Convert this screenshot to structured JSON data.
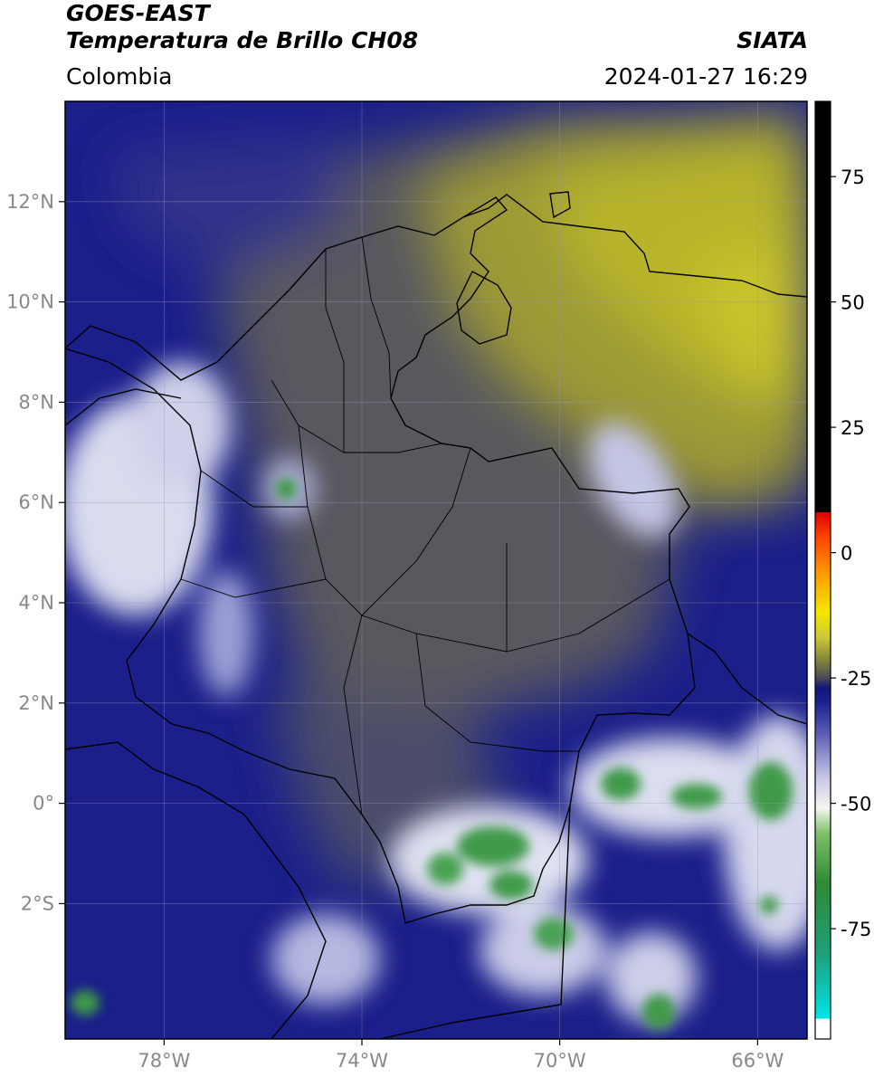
{
  "header": {
    "satellite": "GOES-EAST",
    "product": "Temperatura de Brillo CH08",
    "region": "Colombia",
    "brand": "SIATA",
    "timestamp": "2024-01-27 16:29"
  },
  "map": {
    "extent": {
      "lon_min": -80,
      "lon_max": -65,
      "lat_min": -4.7,
      "lat_max": 14.0
    },
    "lon_ticks": [
      {
        "value": -78,
        "label": "78°W"
      },
      {
        "value": -74,
        "label": "74°W"
      },
      {
        "value": -70,
        "label": "70°W"
      },
      {
        "value": -66,
        "label": "66°W"
      }
    ],
    "lat_ticks": [
      {
        "value": 12,
        "label": "12°N"
      },
      {
        "value": 10,
        "label": "10°N"
      },
      {
        "value": 8,
        "label": "8°N"
      },
      {
        "value": 6,
        "label": "6°N"
      },
      {
        "value": 4,
        "label": "4°N"
      },
      {
        "value": 2,
        "label": "2°N"
      },
      {
        "value": 0,
        "label": "0°"
      },
      {
        "value": -2,
        "label": "2°S"
      }
    ],
    "gridlines": true,
    "colors": {
      "deep_blue": "#1a1f8a",
      "gray": "#5a5a60",
      "yellow": "#b8b42a",
      "white": "#e8e8f4",
      "green": "#3f9a4a",
      "border": "#000000"
    }
  },
  "colorbar": {
    "range": [
      -97,
      90
    ],
    "ticks": [
      {
        "value": 75,
        "label": "75"
      },
      {
        "value": 50,
        "label": "50"
      },
      {
        "value": 25,
        "label": "25"
      },
      {
        "value": 0,
        "label": "0"
      },
      {
        "value": -25,
        "label": "-25"
      },
      {
        "value": -50,
        "label": "-50"
      },
      {
        "value": -75,
        "label": "-75"
      }
    ],
    "stops": [
      {
        "value": -97,
        "color": "#ffffff"
      },
      {
        "value": -93,
        "color": "#ffffff"
      },
      {
        "value": -92.9,
        "color": "#00e5e5"
      },
      {
        "value": -80,
        "color": "#1f9f7a"
      },
      {
        "value": -66,
        "color": "#2e8a34"
      },
      {
        "value": -56,
        "color": "#7fbf6a"
      },
      {
        "value": -51,
        "color": "#f4f6f0"
      },
      {
        "value": -45,
        "color": "#c8c8e6"
      },
      {
        "value": -36,
        "color": "#5a5cb4"
      },
      {
        "value": -30,
        "color": "#1e2290"
      },
      {
        "value": -27,
        "color": "#12157a"
      },
      {
        "value": -25,
        "color": "#4a4a58"
      },
      {
        "value": -21,
        "color": "#8a8a3a"
      },
      {
        "value": -17,
        "color": "#c8c838"
      },
      {
        "value": -12,
        "color": "#f4e800"
      },
      {
        "value": -4,
        "color": "#ff9800"
      },
      {
        "value": 3,
        "color": "#ff4400"
      },
      {
        "value": 8,
        "color": "#e00000"
      },
      {
        "value": 8.1,
        "color": "#000000"
      },
      {
        "value": 90,
        "color": "#000000"
      }
    ]
  }
}
